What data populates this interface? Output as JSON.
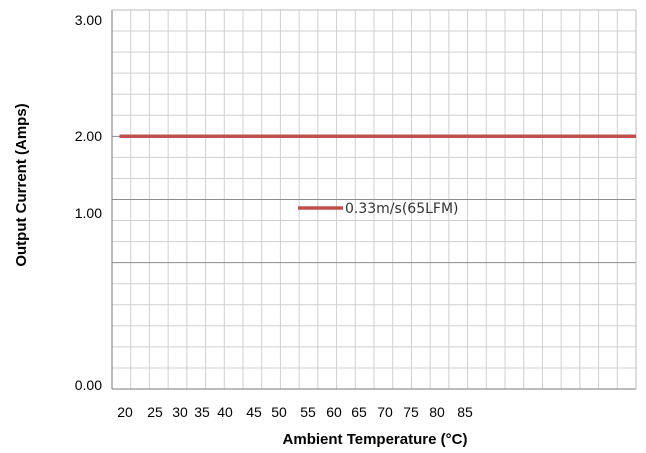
{
  "chart_data": {
    "type": "line",
    "xlabel": "Ambient Temperature (°C)",
    "ylabel": "Output Current (Amps)",
    "xlim": [
      20,
      90
    ],
    "ylim": [
      0,
      3
    ],
    "x_ticks": [
      "20",
      "25",
      "30",
      "35",
      "40",
      "45",
      "50",
      "55",
      "60",
      "65",
      "70",
      "75",
      "80",
      "85"
    ],
    "y_ticks": [
      {
        "value": 3,
        "label": "3.00"
      },
      {
        "value": 2,
        "label": "2.00"
      },
      {
        "value": 1,
        "label": "1.00"
      },
      {
        "value": 0,
        "label": "0.00"
      }
    ],
    "grid": true,
    "legend_position": "center",
    "series": [
      {
        "name": "0.33m/s(65LFM)",
        "color": "#c0504d",
        "x": [
          21,
          90
        ],
        "y": [
          2.0,
          2.0
        ]
      }
    ]
  }
}
